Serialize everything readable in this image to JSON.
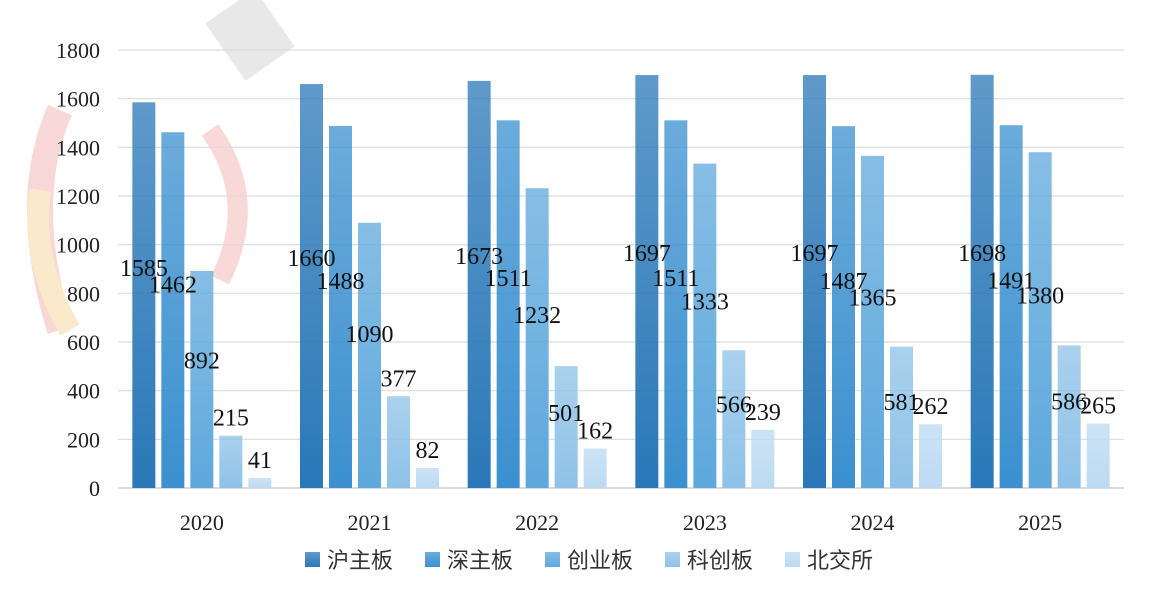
{
  "chart_data": {
    "type": "bar",
    "categories": [
      "2020",
      "2021",
      "2022",
      "2023",
      "2024",
      "2025"
    ],
    "series": [
      {
        "name": "沪主板",
        "values": [
          1585,
          1660,
          1673,
          1697,
          1697,
          1698
        ],
        "color": "#2a78b8"
      },
      {
        "name": "深主板",
        "values": [
          1462,
          1488,
          1511,
          1511,
          1487,
          1491
        ],
        "color": "#3b90cf"
      },
      {
        "name": "创业板",
        "values": [
          892,
          1090,
          1232,
          1333,
          1365,
          1380
        ],
        "color": "#5ea8dc"
      },
      {
        "name": "科创板",
        "values": [
          215,
          377,
          501,
          566,
          581,
          586
        ],
        "color": "#8ec2e8"
      },
      {
        "name": "北交所",
        "values": [
          41,
          82,
          162,
          239,
          262,
          265
        ],
        "color": "#bcdaf2"
      }
    ],
    "yticks": [
      0,
      200,
      400,
      600,
      800,
      1000,
      1200,
      1400,
      1600,
      1800
    ],
    "ylim": [
      0,
      1800
    ],
    "grid": true,
    "legend": "bottom-center"
  }
}
